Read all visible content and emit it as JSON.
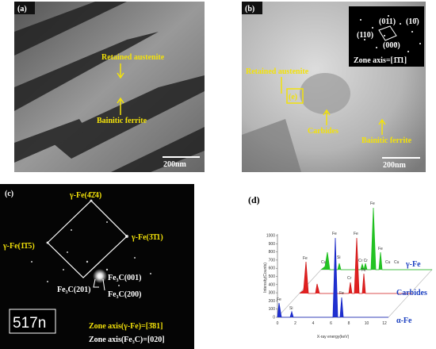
{
  "panel_a": {
    "label": "(a)",
    "texts": [
      "Retained austenite",
      "Bainitic ferrite"
    ],
    "scale": "200nm"
  },
  "panel_b": {
    "label": "(b)",
    "inset": [
      "(011)",
      "(10̄)",
      "(110)",
      "(000)",
      "Zone axis=[1̄1̄1]"
    ],
    "texts": [
      "Retained austenite",
      "(e)",
      "Carbides",
      "Bainitic ferrite"
    ],
    "scale": "200nm"
  },
  "panel_c": {
    "label": "(c)",
    "texts": [
      "γ-Fe(4̄2̄4)",
      "γ-Fe(3̄1̄1)",
      "γ-Fe(1̄1̄5)",
      "Fe₃C(001)",
      "Fe₃C(201)",
      "Fe₃C(200)"
    ],
    "badge": "517n",
    "zone": [
      "Zone axis(γ-Fe)=[3̄81]",
      "Zone axis(Fe₃C)=[020]"
    ]
  },
  "panel_d": {
    "label": "(d)",
    "ylabel": "Intensity(Counts)",
    "xlabel": "X-ray energy(keV)",
    "yticks": [
      "0",
      "100",
      "200",
      "300",
      "400",
      "500",
      "600",
      "700",
      "800",
      "900",
      "1000"
    ],
    "xticks": [
      "0",
      "2",
      "4",
      "6",
      "8",
      "10",
      "12"
    ],
    "peaks": [
      "Fe",
      "Cu",
      "Si",
      "Cr Cr",
      "Fe",
      "Cu",
      "Cu",
      "Fe",
      "Fe",
      "Cr",
      "Fe",
      "Fe",
      "Si",
      "Fe",
      "Fe"
    ],
    "series": [
      "γ-Fe",
      "Carbides",
      "α-Fe"
    ]
  }
}
